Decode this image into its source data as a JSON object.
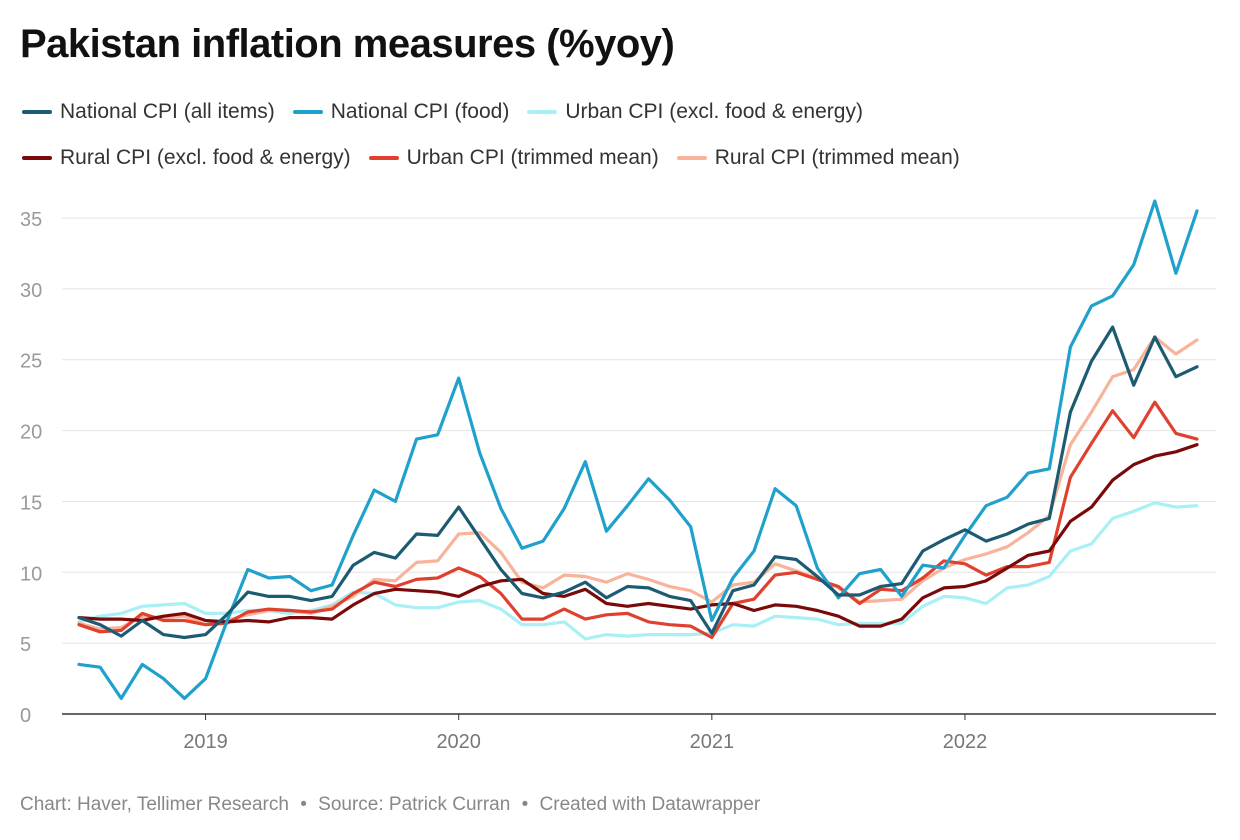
{
  "title": "Pakistan inflation measures (%yoy)",
  "footer": {
    "chart": "Chart: Haver, Tellimer Research",
    "source": "Source: Patrick Curran",
    "created": "Created with Datawrapper",
    "separator": "•"
  },
  "chart_data": {
    "type": "line",
    "title": "Pakistan inflation measures (%yoy)",
    "xlabel": "",
    "ylabel": "",
    "ylim": [
      0,
      35
    ],
    "yticks": [
      0,
      5,
      10,
      15,
      20,
      25,
      30,
      35
    ],
    "xticks": [
      "2019",
      "2020",
      "2021",
      "2022"
    ],
    "grid": true,
    "legend": "top",
    "x": [
      "2018-07",
      "2018-08",
      "2018-09",
      "2018-10",
      "2018-11",
      "2018-12",
      "2019-01",
      "2019-02",
      "2019-03",
      "2019-04",
      "2019-05",
      "2019-06",
      "2019-07",
      "2019-08",
      "2019-09",
      "2019-10",
      "2019-11",
      "2019-12",
      "2020-01",
      "2020-02",
      "2020-03",
      "2020-04",
      "2020-05",
      "2020-06",
      "2020-07",
      "2020-08",
      "2020-09",
      "2020-10",
      "2020-11",
      "2020-12",
      "2021-01",
      "2021-02",
      "2021-03",
      "2021-04",
      "2021-05",
      "2021-06",
      "2021-07",
      "2021-08",
      "2021-09",
      "2021-10",
      "2021-11",
      "2021-12",
      "2022-01",
      "2022-02",
      "2022-03",
      "2022-04",
      "2022-05",
      "2022-06",
      "2022-07",
      "2022-08",
      "2022-09",
      "2022-10",
      "2022-11",
      "2022-12"
    ],
    "series": [
      {
        "name": "National CPI (all items)",
        "color": "#1d5b73",
        "values": [
          6.8,
          6.3,
          5.5,
          6.6,
          5.6,
          5.4,
          5.6,
          7.0,
          8.6,
          8.3,
          8.3,
          8.0,
          8.3,
          10.5,
          11.4,
          11.0,
          12.7,
          12.6,
          14.6,
          12.4,
          10.2,
          8.5,
          8.2,
          8.6,
          9.3,
          8.2,
          9.0,
          8.9,
          8.3,
          8.0,
          5.7,
          8.7,
          9.1,
          11.1,
          10.9,
          9.7,
          8.4,
          8.4,
          9.0,
          9.2,
          11.5,
          12.3,
          13.0,
          12.2,
          12.7,
          13.4,
          13.8,
          21.3,
          24.9,
          27.3,
          23.2,
          26.6,
          23.8,
          24.5
        ]
      },
      {
        "name": "National CPI (food)",
        "color": "#1fa1cc",
        "values": [
          3.5,
          3.3,
          1.1,
          3.5,
          2.5,
          1.1,
          2.5,
          6.5,
          10.2,
          9.6,
          9.7,
          8.7,
          9.1,
          12.6,
          15.8,
          15.0,
          19.4,
          19.7,
          23.7,
          18.4,
          14.5,
          11.7,
          12.2,
          14.5,
          17.8,
          12.9,
          14.7,
          16.6,
          15.1,
          13.2,
          6.6,
          9.6,
          11.5,
          15.9,
          14.7,
          10.3,
          8.2,
          9.9,
          10.2,
          8.3,
          10.5,
          10.3,
          12.6,
          14.7,
          15.3,
          17.0,
          17.3,
          25.9,
          28.8,
          29.5,
          31.7,
          36.2,
          31.1,
          35.5
        ]
      },
      {
        "name": "Urban CPI (excl. food & energy)",
        "color": "#a8f0f5",
        "values": [
          6.5,
          6.9,
          7.1,
          7.6,
          7.7,
          7.8,
          7.1,
          7.1,
          7.3,
          7.3,
          7.1,
          7.3,
          7.7,
          8.6,
          8.5,
          7.7,
          7.5,
          7.5,
          7.9,
          8.0,
          7.4,
          6.3,
          6.3,
          6.5,
          5.3,
          5.6,
          5.5,
          5.6,
          5.6,
          5.6,
          5.7,
          6.3,
          6.2,
          6.9,
          6.8,
          6.7,
          6.3,
          6.4,
          6.4,
          6.4,
          7.6,
          8.3,
          8.2,
          7.8,
          8.9,
          9.1,
          9.7,
          11.5,
          12.0,
          13.8,
          14.3,
          14.9,
          14.6,
          14.7
        ]
      },
      {
        "name": "Rural CPI (excl. food & energy)",
        "color": "#7a0a0a",
        "values": [
          6.8,
          6.7,
          6.7,
          6.6,
          6.9,
          7.1,
          6.6,
          6.5,
          6.6,
          6.5,
          6.8,
          6.8,
          6.7,
          7.7,
          8.5,
          8.8,
          8.7,
          8.6,
          8.3,
          9.0,
          9.4,
          9.5,
          8.5,
          8.3,
          8.8,
          7.8,
          7.6,
          7.8,
          7.6,
          7.4,
          7.7,
          7.8,
          7.3,
          7.7,
          7.6,
          7.3,
          6.9,
          6.2,
          6.2,
          6.7,
          8.2,
          8.9,
          9.0,
          9.4,
          10.3,
          11.2,
          11.5,
          13.6,
          14.6,
          16.5,
          17.6,
          18.2,
          18.5,
          19.0
        ]
      },
      {
        "name": "Urban CPI (trimmed mean)",
        "color": "#e0412f",
        "values": [
          6.3,
          5.8,
          5.9,
          7.1,
          6.6,
          6.6,
          6.3,
          6.4,
          7.2,
          7.4,
          7.3,
          7.2,
          7.4,
          8.5,
          9.3,
          9.0,
          9.5,
          9.6,
          10.3,
          9.7,
          8.5,
          6.7,
          6.7,
          7.4,
          6.7,
          7.0,
          7.1,
          6.5,
          6.3,
          6.2,
          5.4,
          7.8,
          8.1,
          9.8,
          10.0,
          9.5,
          9.0,
          7.8,
          8.8,
          8.7,
          9.6,
          10.8,
          10.6,
          9.8,
          10.4,
          10.4,
          10.7,
          16.7,
          19.1,
          21.4,
          19.5,
          22.0,
          19.8,
          19.4
        ]
      },
      {
        "name": "Rural CPI (trimmed mean)",
        "color": "#f7b49a",
        "values": [
          6.4,
          6.0,
          6.1,
          6.9,
          6.8,
          6.9,
          6.3,
          6.6,
          7.0,
          7.3,
          7.3,
          7.1,
          7.6,
          8.3,
          9.5,
          9.4,
          10.7,
          10.8,
          12.7,
          12.8,
          11.4,
          9.3,
          8.9,
          9.8,
          9.7,
          9.3,
          9.9,
          9.5,
          9.0,
          8.7,
          7.9,
          9.1,
          9.3,
          10.6,
          10.1,
          9.6,
          8.9,
          7.9,
          8.0,
          8.1,
          9.4,
          10.3,
          10.9,
          11.3,
          11.8,
          12.8,
          14.0,
          19.0,
          21.3,
          23.8,
          24.3,
          26.6,
          25.4,
          26.4
        ]
      }
    ]
  }
}
